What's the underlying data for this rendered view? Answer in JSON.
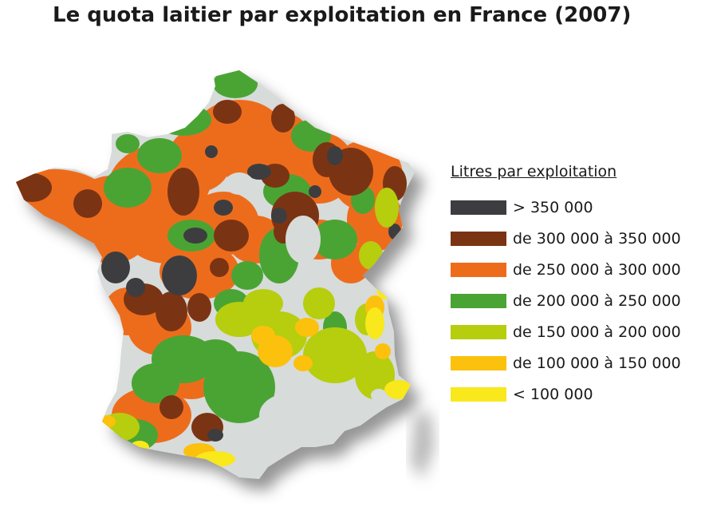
{
  "title": "Le quota laitier par exploitation en France (2007)",
  "legend": {
    "title": "Litres par exploitation",
    "items": [
      {
        "label": "> 350 000",
        "color": "#3d3d40"
      },
      {
        "label": "de 300 000 à 350 000",
        "color": "#7b3413"
      },
      {
        "label": "de 250 000 à 300 000",
        "color": "#ed6c1c"
      },
      {
        "label": "de 200 000 à 250 000",
        "color": "#4aa434"
      },
      {
        "label": "de 150 000 à 200 000",
        "color": "#b6ce0e"
      },
      {
        "label": "de 100 000 à 150 000",
        "color": "#fbc10c"
      },
      {
        "label": "< 100 000",
        "color": "#f8e81c"
      }
    ]
  },
  "map": {
    "background_color": "#d7dbda",
    "shadow_color": "#8a8a8a"
  }
}
